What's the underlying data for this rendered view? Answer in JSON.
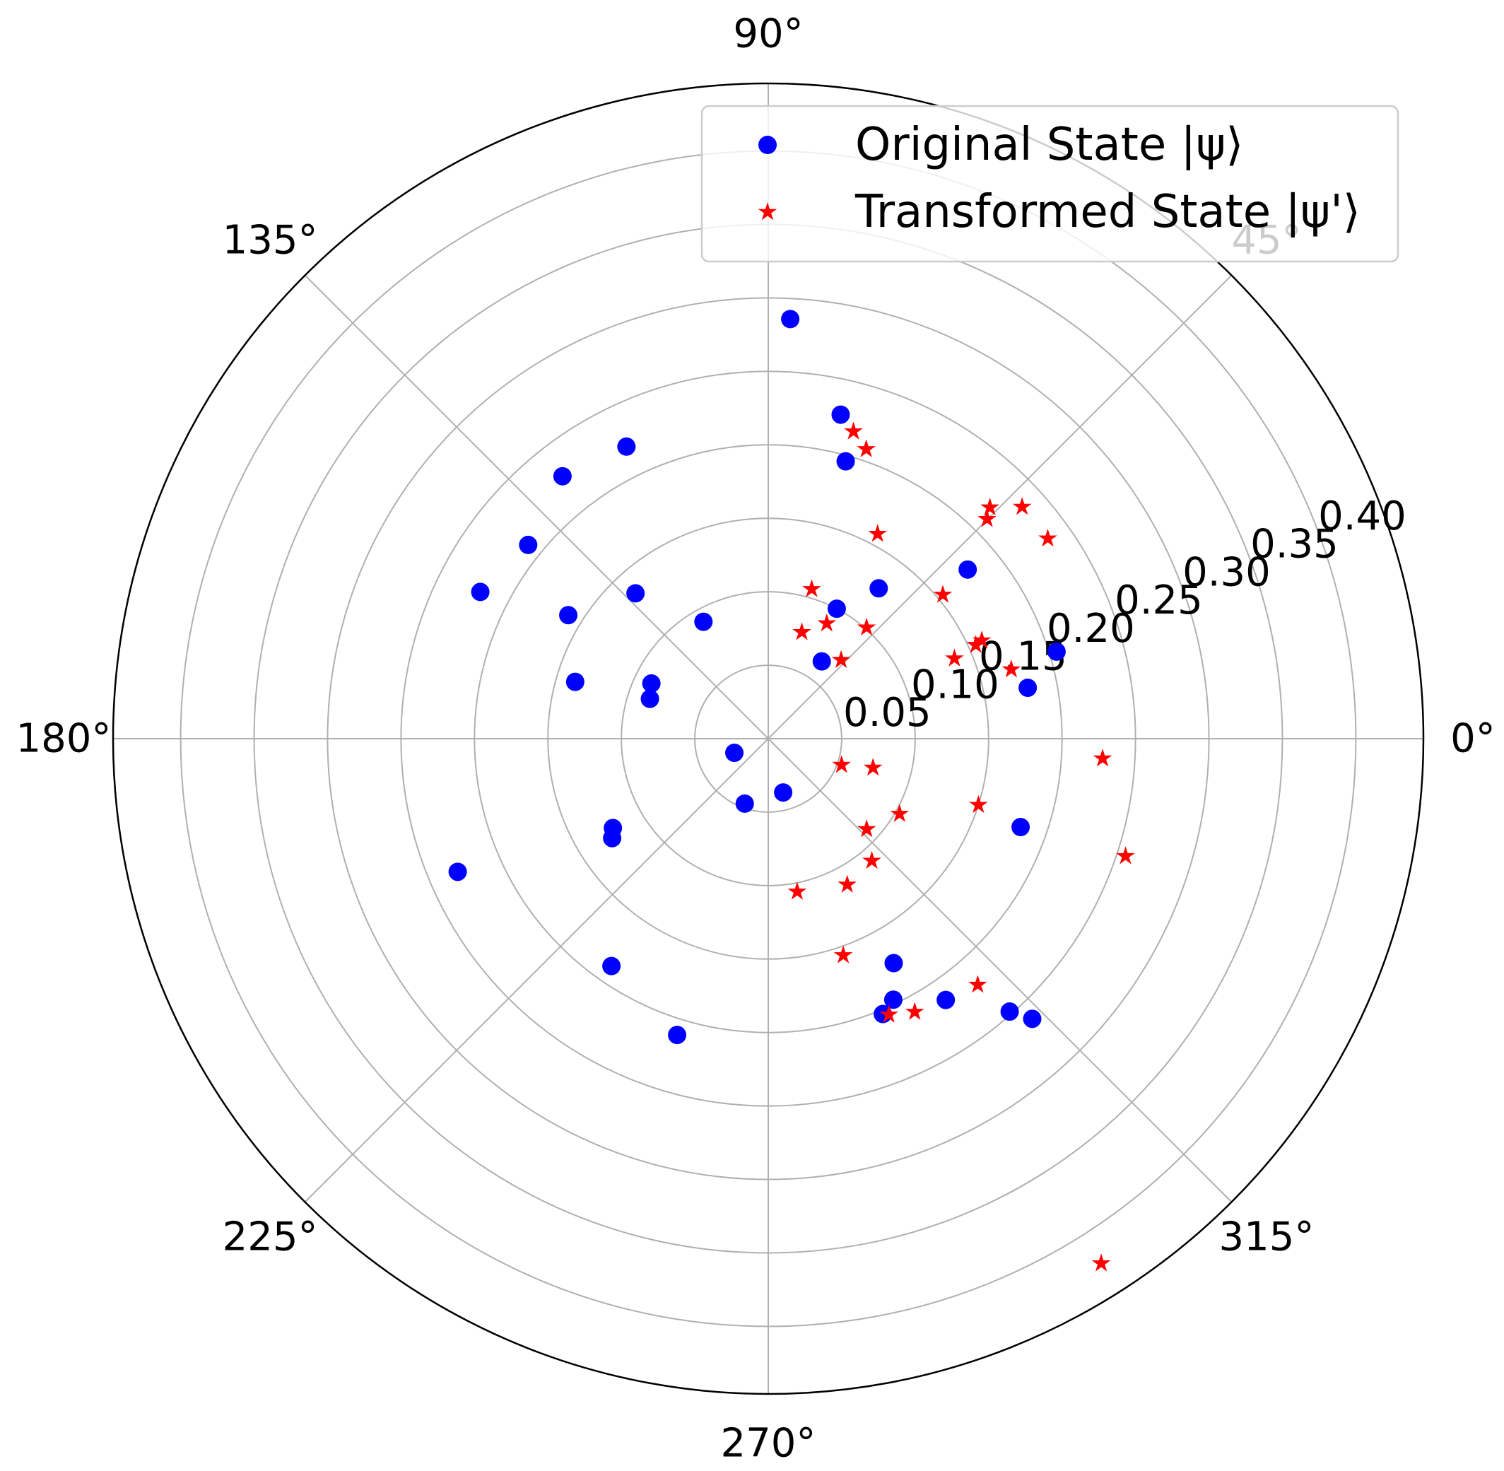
{
  "chart_data": {
    "type": "scatter",
    "projection": "polar",
    "title": "",
    "grid": true,
    "legend_position": "top-right",
    "theta_unit": "degrees",
    "theta_ticks": [
      "0°",
      "45°",
      "90°",
      "135°",
      "180°",
      "225°",
      "270°",
      "315°"
    ],
    "r_ticks": [
      "0.05",
      "0.10",
      "0.15",
      "0.20",
      "0.25",
      "0.30",
      "0.35",
      "0.40"
    ],
    "r_tick_values": [
      0.05,
      0.1,
      0.15,
      0.2,
      0.25,
      0.3,
      0.35,
      0.4
    ],
    "rlim": [
      0,
      0.446
    ],
    "series": [
      {
        "name": "Original State |ψ⟩",
        "color": "#0000ff",
        "marker": "circle",
        "points": [
          {
            "theta": 87.0,
            "r": 0.286
          },
          {
            "theta": 77.4,
            "r": 0.226
          },
          {
            "theta": 74.4,
            "r": 0.196
          },
          {
            "theta": 128.1,
            "r": 0.227
          },
          {
            "theta": 115.9,
            "r": 0.221
          },
          {
            "theta": 141.1,
            "r": 0.21
          },
          {
            "theta": 153.0,
            "r": 0.22
          },
          {
            "theta": 148.3,
            "r": 0.16
          },
          {
            "theta": 132.4,
            "r": 0.134
          },
          {
            "theta": 119.0,
            "r": 0.091
          },
          {
            "theta": 163.6,
            "r": 0.137
          },
          {
            "theta": 154.7,
            "r": 0.088
          },
          {
            "theta": 161.4,
            "r": 0.085
          },
          {
            "theta": 40.3,
            "r": 0.178
          },
          {
            "theta": 53.7,
            "r": 0.127
          },
          {
            "theta": 62.2,
            "r": 0.1
          },
          {
            "theta": 55.3,
            "r": 0.064
          },
          {
            "theta": 16.8,
            "r": 0.205
          },
          {
            "theta": 11.1,
            "r": 0.18
          },
          {
            "theta": 203.2,
            "r": 0.23
          },
          {
            "theta": 212.5,
            "r": 0.126
          },
          {
            "theta": 209.9,
            "r": 0.122
          },
          {
            "theta": 235.4,
            "r": 0.188
          },
          {
            "theta": 252.9,
            "r": 0.211
          },
          {
            "theta": 202.6,
            "r": 0.025
          },
          {
            "theta": 250.1,
            "r": 0.047
          },
          {
            "theta": 285.5,
            "r": 0.038
          },
          {
            "theta": 299.2,
            "r": 0.175
          },
          {
            "theta": 295.6,
            "r": 0.197
          },
          {
            "theta": 292.6,
            "r": 0.203
          },
          {
            "theta": 304.2,
            "r": 0.215
          },
          {
            "theta": 313.3,
            "r": 0.262
          },
          {
            "theta": 311.5,
            "r": 0.248
          },
          {
            "theta": 340.7,
            "r": 0.182
          }
        ]
      },
      {
        "name": "Transformed State |ψ'⟩",
        "color": "#ff0000",
        "marker": "star",
        "points": [
          {
            "theta": 74.5,
            "r": 0.217
          },
          {
            "theta": 71.3,
            "r": 0.208
          },
          {
            "theta": 61.9,
            "r": 0.158
          },
          {
            "theta": 48.5,
            "r": 0.101
          },
          {
            "theta": 45.1,
            "r": 0.211
          },
          {
            "theta": 46.2,
            "r": 0.218
          },
          {
            "theta": 42.4,
            "r": 0.234
          },
          {
            "theta": 35.6,
            "r": 0.234
          },
          {
            "theta": 39.5,
            "r": 0.154
          },
          {
            "theta": 73.8,
            "r": 0.106
          },
          {
            "theta": 72.5,
            "r": 0.076
          },
          {
            "theta": 63.1,
            "r": 0.088
          },
          {
            "theta": 47.2,
            "r": 0.073
          },
          {
            "theta": 23.3,
            "r": 0.138
          },
          {
            "theta": 24.7,
            "r": 0.16
          },
          {
            "theta": 24.3,
            "r": 0.155
          },
          {
            "theta": 15.9,
            "r": 0.172
          },
          {
            "theta": 356.6,
            "r": 0.228
          },
          {
            "theta": 341.8,
            "r": 0.256
          },
          {
            "theta": 302.4,
            "r": 0.423
          },
          {
            "theta": 342.5,
            "r": 0.15
          },
          {
            "theta": 330.2,
            "r": 0.103
          },
          {
            "theta": 344.5,
            "r": 0.074
          },
          {
            "theta": 340.3,
            "r": 0.053
          },
          {
            "theta": 317.4,
            "r": 0.091
          },
          {
            "theta": 310.3,
            "r": 0.109
          },
          {
            "theta": 298.4,
            "r": 0.113
          },
          {
            "theta": 280.7,
            "r": 0.106
          },
          {
            "theta": 289.1,
            "r": 0.156
          },
          {
            "theta": 310.4,
            "r": 0.22
          },
          {
            "theta": 298.2,
            "r": 0.211
          },
          {
            "theta": 293.6,
            "r": 0.205
          }
        ]
      }
    ]
  }
}
